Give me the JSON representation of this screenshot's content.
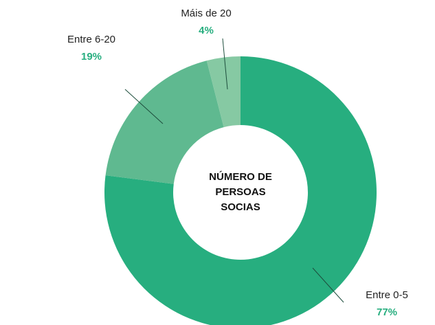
{
  "chart_data": {
    "type": "pie",
    "categories": [
      "Entre 0-5",
      "Entre 6-20",
      "Máis de 20"
    ],
    "values": [
      77,
      19,
      4
    ],
    "value_labels": [
      "77%",
      "19%",
      "4%"
    ],
    "colors": [
      "#27ae7f",
      "#5fb990",
      "#86c9a3"
    ],
    "center_label": [
      "NÚMERO DE",
      "PERSOAS",
      "SOCIAS"
    ]
  }
}
